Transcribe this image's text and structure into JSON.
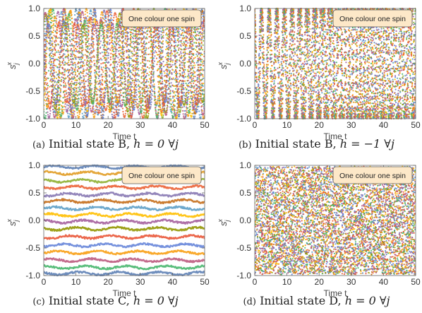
{
  "colors": [
    "#5e81b5",
    "#e19c24",
    "#8fb032",
    "#eb6235",
    "#8778b3",
    "#c56e1a",
    "#5d9ec7",
    "#ffbf00",
    "#a5609d",
    "#929600",
    "#e95536",
    "#6685d9",
    "#f89f13",
    "#bc5b80",
    "#47b66d"
  ],
  "legend_box_fill": "#fde8c8",
  "panels": [
    {
      "id": "a",
      "caption_label": "(a)",
      "caption_text": "Initial state B, ",
      "caption_math": "h = 0 ∀j",
      "xlabel": "Time t",
      "ylabel": "sjx",
      "legend_text": "One colour one spin",
      "xticks": [
        "0",
        "10",
        "20",
        "30",
        "40",
        "50"
      ],
      "yticks": [
        "-1.0",
        "-0.5",
        "0.0",
        "0.5",
        "1.0"
      ],
      "chart_data": {
        "type": "scatter",
        "x_range": [
          0,
          50
        ],
        "y_range": [
          -1.0,
          1.0
        ],
        "series_count": 15,
        "pattern": "dense oscillations between -1 and 1, period ~4 to 6, colors interleaved"
      }
    },
    {
      "id": "b",
      "caption_label": "(b)",
      "caption_text": "Initial state B, ",
      "caption_math": "h = −1 ∀j",
      "xlabel": "Time t",
      "ylabel": "sjx",
      "legend_text": "One colour one spin",
      "xticks": [
        "0",
        "10",
        "20",
        "30",
        "40",
        "50"
      ],
      "yticks": [
        "-1.0",
        "-0.5",
        "0.0",
        "0.5",
        "1.0"
      ],
      "chart_data": {
        "type": "scatter",
        "x_range": [
          0,
          50
        ],
        "y_range": [
          -1.0,
          1.0
        ],
        "series_count": 15,
        "pattern": "regular synchronized oscillations between -1 and 1, period ~2.3"
      }
    },
    {
      "id": "c",
      "caption_label": "(c)",
      "caption_text": "Initial state C, ",
      "caption_math": "h = 0 ∀j",
      "xlabel": "Time t",
      "ylabel": "sjx",
      "legend_text": "One colour one spin",
      "xticks": [
        "0",
        "10",
        "20",
        "30",
        "40",
        "50"
      ],
      "yticks": [
        "-1.0",
        "-0.5",
        "0.0",
        "0.5",
        "1.0"
      ],
      "chart_data": {
        "type": "scatter",
        "x_range": [
          0,
          50
        ],
        "y_range": [
          -1.0,
          1.0
        ],
        "series_count": 16,
        "levels": [
          0.97,
          0.86,
          0.72,
          0.6,
          0.47,
          0.35,
          0.22,
          0.1,
          -0.02,
          -0.15,
          -0.3,
          -0.45,
          -0.58,
          -0.72,
          -0.85,
          -0.96
        ],
        "pattern": "nearly constant horizontal bands with small fluctuations"
      }
    },
    {
      "id": "d",
      "caption_label": "(d)",
      "caption_text": "Initial state D, ",
      "caption_math": "h = 0 ∀j",
      "xlabel": "Time t",
      "ylabel": "sjx",
      "legend_text": "One colour one spin",
      "xticks": [
        "0",
        "10",
        "20",
        "30",
        "40",
        "50"
      ],
      "yticks": [
        "-1.0",
        "-0.5",
        "0.0",
        "0.5",
        "1.0"
      ],
      "chart_data": {
        "type": "scatter",
        "x_range": [
          0,
          50
        ],
        "y_range": [
          -1.0,
          1.0
        ],
        "series_count": 15,
        "pattern": "chaotic dense scatter filling -1 to 1"
      }
    }
  ]
}
